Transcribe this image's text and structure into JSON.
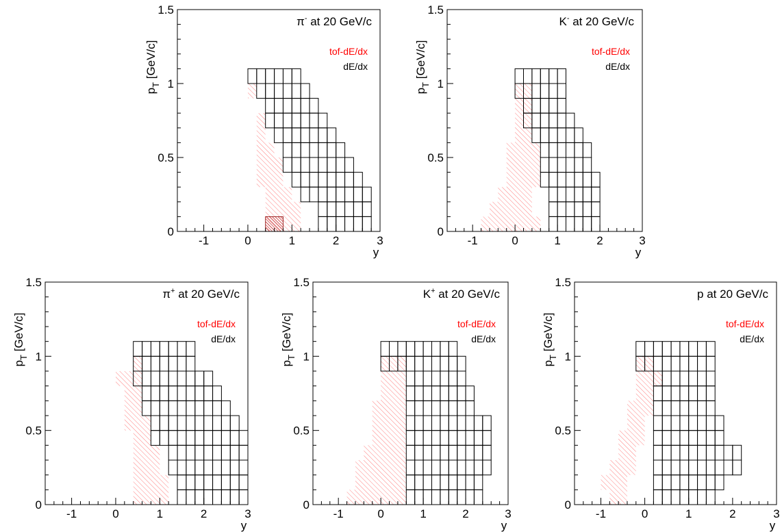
{
  "chart_data": [
    {
      "type": "heatmap",
      "title": "π",
      "title_sup": "-",
      "title_rest": " at 20 GeV/c",
      "xlabel": "y",
      "ylabel": "p",
      "ylabel_sub": "T",
      "ylabel_rest": " [GeV/c]",
      "xlim": [
        -1.6,
        3.0
      ],
      "ylim": [
        0,
        1.5
      ],
      "xticks": [
        -1,
        0,
        1,
        2,
        3
      ],
      "yticks": [
        0,
        0.5,
        1,
        1.5
      ],
      "ytick_labels": [
        "0",
        "0.5",
        "1",
        "1.5"
      ],
      "legend": [
        {
          "label": "tof-dE/dx",
          "color": "#ff0000"
        },
        {
          "label": "dE/dx",
          "color": "#000000"
        }
      ],
      "bin_width": 0.2,
      "pt_bin_width": 0.1,
      "dedx_rows": [
        {
          "pt": 0.0,
          "y": [
            1.6,
            2.8
          ]
        },
        {
          "pt": 0.1,
          "y": [
            1.6,
            2.8
          ]
        },
        {
          "pt": 0.2,
          "y": [
            1.2,
            2.8
          ]
        },
        {
          "pt": 0.3,
          "y": [
            1.0,
            2.6
          ]
        },
        {
          "pt": 0.4,
          "y": [
            0.8,
            2.4
          ]
        },
        {
          "pt": 0.5,
          "y": [
            0.8,
            2.2
          ]
        },
        {
          "pt": 0.6,
          "y": [
            0.6,
            2.0
          ]
        },
        {
          "pt": 0.7,
          "y": [
            0.4,
            1.8
          ]
        },
        {
          "pt": 0.8,
          "y": [
            0.4,
            1.6
          ]
        },
        {
          "pt": 0.9,
          "y": [
            0.2,
            1.4
          ]
        },
        {
          "pt": 1.0,
          "y": [
            0.0,
            1.2
          ]
        }
      ],
      "tof_region": [
        [
          0.4,
          0.0
        ],
        [
          1.2,
          0.0
        ],
        [
          1.2,
          0.2
        ],
        [
          1.0,
          0.2
        ],
        [
          1.0,
          0.3
        ],
        [
          0.8,
          0.3
        ],
        [
          0.8,
          0.5
        ],
        [
          0.6,
          0.5
        ],
        [
          0.6,
          0.6
        ],
        [
          0.4,
          0.6
        ],
        [
          0.4,
          0.8
        ],
        [
          0.2,
          0.8
        ],
        [
          0.2,
          1.0
        ],
        [
          0.0,
          1.0
        ],
        [
          0.0,
          0.9
        ],
        [
          0.2,
          0.9
        ],
        [
          0.2,
          0.3
        ],
        [
          0.4,
          0.3
        ]
      ],
      "dense_cell": [
        0.4,
        0.0,
        0.8,
        0.1
      ]
    },
    {
      "type": "heatmap",
      "title": "K",
      "title_sup": "-",
      "title_rest": " at 20 GeV/c",
      "xlabel": "y",
      "ylabel": "p",
      "ylabel_sub": "T",
      "ylabel_rest": " [GeV/c]",
      "xlim": [
        -1.6,
        3.0
      ],
      "ylim": [
        0,
        1.5
      ],
      "xticks": [
        -1,
        0,
        1,
        2,
        3
      ],
      "yticks": [
        0,
        0.5,
        1,
        1.5
      ],
      "ytick_labels": [
        "0",
        "0.5",
        "1",
        "1.5"
      ],
      "legend": [
        {
          "label": "tof-dE/dx",
          "color": "#ff0000"
        },
        {
          "label": "dE/dx",
          "color": "#000000"
        }
      ],
      "bin_width": 0.2,
      "pt_bin_width": 0.1,
      "dedx_rows": [
        {
          "pt": 0.0,
          "y": [
            0.8,
            2.0
          ]
        },
        {
          "pt": 0.1,
          "y": [
            0.8,
            2.0
          ]
        },
        {
          "pt": 0.2,
          "y": [
            0.8,
            2.0
          ]
        },
        {
          "pt": 0.3,
          "y": [
            0.6,
            2.0
          ]
        },
        {
          "pt": 0.4,
          "y": [
            0.6,
            1.8
          ]
        },
        {
          "pt": 0.5,
          "y": [
            0.6,
            1.8
          ]
        },
        {
          "pt": 0.6,
          "y": [
            0.4,
            1.6
          ]
        },
        {
          "pt": 0.7,
          "y": [
            0.2,
            1.4
          ]
        },
        {
          "pt": 0.8,
          "y": [
            0.2,
            1.2
          ]
        },
        {
          "pt": 0.9,
          "y": [
            0.0,
            1.2
          ]
        },
        {
          "pt": 1.0,
          "y": [
            0.0,
            1.2
          ]
        }
      ],
      "tof_region": [
        [
          -0.8,
          0.0
        ],
        [
          0.6,
          0.0
        ],
        [
          0.6,
          0.1
        ],
        [
          0.4,
          0.1
        ],
        [
          0.4,
          0.3
        ],
        [
          0.6,
          0.3
        ],
        [
          0.6,
          0.6
        ],
        [
          0.4,
          0.6
        ],
        [
          0.4,
          1.0
        ],
        [
          0.0,
          1.0
        ],
        [
          0.0,
          0.6
        ],
        [
          -0.2,
          0.6
        ],
        [
          -0.2,
          0.3
        ],
        [
          -0.4,
          0.3
        ],
        [
          -0.4,
          0.2
        ],
        [
          -0.6,
          0.2
        ],
        [
          -0.6,
          0.1
        ],
        [
          -0.8,
          0.1
        ]
      ]
    },
    {
      "type": "heatmap",
      "title": "π",
      "title_sup": "+",
      "title_rest": " at 20 GeV/c",
      "xlabel": "y",
      "ylabel": "p",
      "ylabel_sub": "T",
      "ylabel_rest": " [GeV/c]",
      "xlim": [
        -1.6,
        3.0
      ],
      "ylim": [
        0,
        1.5
      ],
      "xticks": [
        -1,
        0,
        1,
        2,
        3
      ],
      "yticks": [
        0,
        0.5,
        1,
        1.5
      ],
      "ytick_labels": [
        "0",
        "0.5",
        "1",
        "1.5"
      ],
      "legend": [
        {
          "label": "tof-dE/dx",
          "color": "#ff0000"
        },
        {
          "label": "dE/dx",
          "color": "#000000"
        }
      ],
      "bin_width": 0.2,
      "pt_bin_width": 0.1,
      "dedx_rows": [
        {
          "pt": 0.0,
          "y": [
            1.4,
            3.0
          ]
        },
        {
          "pt": 0.1,
          "y": [
            1.4,
            3.0
          ]
        },
        {
          "pt": 0.2,
          "y": [
            1.2,
            3.0
          ]
        },
        {
          "pt": 0.3,
          "y": [
            1.2,
            3.0
          ]
        },
        {
          "pt": 0.4,
          "y": [
            0.8,
            3.0
          ]
        },
        {
          "pt": 0.5,
          "y": [
            0.8,
            2.8
          ]
        },
        {
          "pt": 0.6,
          "y": [
            0.6,
            2.6
          ]
        },
        {
          "pt": 0.7,
          "y": [
            0.6,
            2.4
          ]
        },
        {
          "pt": 0.8,
          "y": [
            0.4,
            2.2
          ]
        },
        {
          "pt": 0.9,
          "y": [
            0.4,
            1.8
          ]
        },
        {
          "pt": 1.0,
          "y": [
            0.4,
            1.8
          ]
        }
      ],
      "tof_region": [
        [
          0.4,
          0.0
        ],
        [
          1.2,
          0.0
        ],
        [
          1.2,
          0.2
        ],
        [
          1.0,
          0.2
        ],
        [
          1.0,
          0.4
        ],
        [
          0.8,
          0.4
        ],
        [
          0.8,
          0.6
        ],
        [
          0.6,
          0.6
        ],
        [
          0.6,
          1.0
        ],
        [
          0.4,
          1.0
        ],
        [
          0.4,
          0.9
        ],
        [
          0.2,
          0.9
        ],
        [
          0.2,
          0.8
        ],
        [
          0.0,
          0.8
        ],
        [
          0.0,
          0.9
        ],
        [
          0.2,
          0.9
        ],
        [
          0.2,
          0.5
        ],
        [
          0.4,
          0.5
        ]
      ]
    },
    {
      "type": "heatmap",
      "title": "K",
      "title_sup": "+",
      "title_rest": " at 20 GeV/c",
      "xlabel": "y",
      "ylabel": "p",
      "ylabel_sub": "T",
      "ylabel_rest": " [GeV/c]",
      "xlim": [
        -1.6,
        3.0
      ],
      "ylim": [
        0,
        1.5
      ],
      "xticks": [
        -1,
        0,
        1,
        2,
        3
      ],
      "yticks": [
        0,
        0.5,
        1,
        1.5
      ],
      "ytick_labels": [
        "0",
        "0.5",
        "1",
        "1.5"
      ],
      "legend": [
        {
          "label": "tof-dE/dx",
          "color": "#ff0000"
        },
        {
          "label": "dE/dx",
          "color": "#000000"
        }
      ],
      "bin_width": 0.2,
      "pt_bin_width": 0.1,
      "dedx_rows": [
        {
          "pt": 0.0,
          "y": [
            0.6,
            2.4
          ]
        },
        {
          "pt": 0.1,
          "y": [
            0.6,
            2.4
          ]
        },
        {
          "pt": 0.2,
          "y": [
            0.6,
            2.6
          ]
        },
        {
          "pt": 0.3,
          "y": [
            0.6,
            2.6
          ]
        },
        {
          "pt": 0.4,
          "y": [
            0.6,
            2.6
          ]
        },
        {
          "pt": 0.5,
          "y": [
            0.6,
            2.6
          ]
        },
        {
          "pt": 0.6,
          "y": [
            0.6,
            2.2
          ]
        },
        {
          "pt": 0.7,
          "y": [
            0.6,
            2.2
          ]
        },
        {
          "pt": 0.8,
          "y": [
            0.6,
            2.0
          ]
        },
        {
          "pt": 0.9,
          "y": [
            0.0,
            2.0
          ]
        },
        {
          "pt": 1.0,
          "y": [
            0.0,
            1.8
          ]
        }
      ],
      "tof_region": [
        [
          -0.8,
          0.0
        ],
        [
          0.6,
          0.0
        ],
        [
          0.6,
          1.0
        ],
        [
          0.0,
          1.0
        ],
        [
          0.0,
          0.7
        ],
        [
          -0.2,
          0.7
        ],
        [
          -0.2,
          0.4
        ],
        [
          -0.4,
          0.4
        ],
        [
          -0.4,
          0.3
        ],
        [
          -0.6,
          0.3
        ],
        [
          -0.6,
          0.1
        ],
        [
          -0.8,
          0.1
        ]
      ]
    },
    {
      "type": "heatmap",
      "title": "p at 20 GeV/c",
      "title_sup": "",
      "title_rest": "",
      "xlabel": "y",
      "ylabel": "p",
      "ylabel_sub": "T",
      "ylabel_rest": " [GeV/c]",
      "xlim": [
        -1.6,
        3.0
      ],
      "ylim": [
        0,
        1.5
      ],
      "xticks": [
        -1,
        0,
        1,
        2,
        3
      ],
      "yticks": [
        0,
        0.5,
        1,
        1.5
      ],
      "ytick_labels": [
        "0",
        "0.5",
        "1",
        "1.5"
      ],
      "legend": [
        {
          "label": "tof-dE/dx",
          "color": "#ff0000"
        },
        {
          "label": "dE/dx",
          "color": "#000000"
        }
      ],
      "bin_width": 0.2,
      "pt_bin_width": 0.1,
      "dedx_rows": [
        {
          "pt": 0.0,
          "y": [
            0.2,
            1.6
          ]
        },
        {
          "pt": 0.1,
          "y": [
            0.2,
            1.8
          ]
        },
        {
          "pt": 0.2,
          "y": [
            0.2,
            2.2
          ]
        },
        {
          "pt": 0.3,
          "y": [
            0.2,
            2.2
          ]
        },
        {
          "pt": 0.4,
          "y": [
            0.2,
            1.8
          ]
        },
        {
          "pt": 0.5,
          "y": [
            0.2,
            1.8
          ]
        },
        {
          "pt": 0.6,
          "y": [
            0.2,
            1.6
          ]
        },
        {
          "pt": 0.7,
          "y": [
            0.2,
            1.6
          ]
        },
        {
          "pt": 0.8,
          "y": [
            0.2,
            1.6
          ]
        },
        {
          "pt": 0.9,
          "y": [
            -0.2,
            1.6
          ]
        },
        {
          "pt": 1.0,
          "y": [
            -0.2,
            1.6
          ]
        }
      ],
      "tof_region": [
        [
          -0.8,
          0.0
        ],
        [
          -0.4,
          0.0
        ],
        [
          -0.4,
          0.2
        ],
        [
          -0.2,
          0.2
        ],
        [
          -0.2,
          0.4
        ],
        [
          0.0,
          0.4
        ],
        [
          0.0,
          0.6
        ],
        [
          0.2,
          0.6
        ],
        [
          0.2,
          0.8
        ],
        [
          0.4,
          0.8
        ],
        [
          0.4,
          0.9
        ],
        [
          0.2,
          0.9
        ],
        [
          0.2,
          1.0
        ],
        [
          -0.2,
          1.0
        ],
        [
          -0.2,
          0.7
        ],
        [
          -0.4,
          0.7
        ],
        [
          -0.4,
          0.5
        ],
        [
          -0.6,
          0.5
        ],
        [
          -0.6,
          0.3
        ],
        [
          -0.8,
          0.3
        ],
        [
          -0.8,
          0.2
        ],
        [
          -1.0,
          0.2
        ],
        [
          -1.0,
          0.1
        ],
        [
          -0.8,
          0.1
        ]
      ]
    }
  ]
}
